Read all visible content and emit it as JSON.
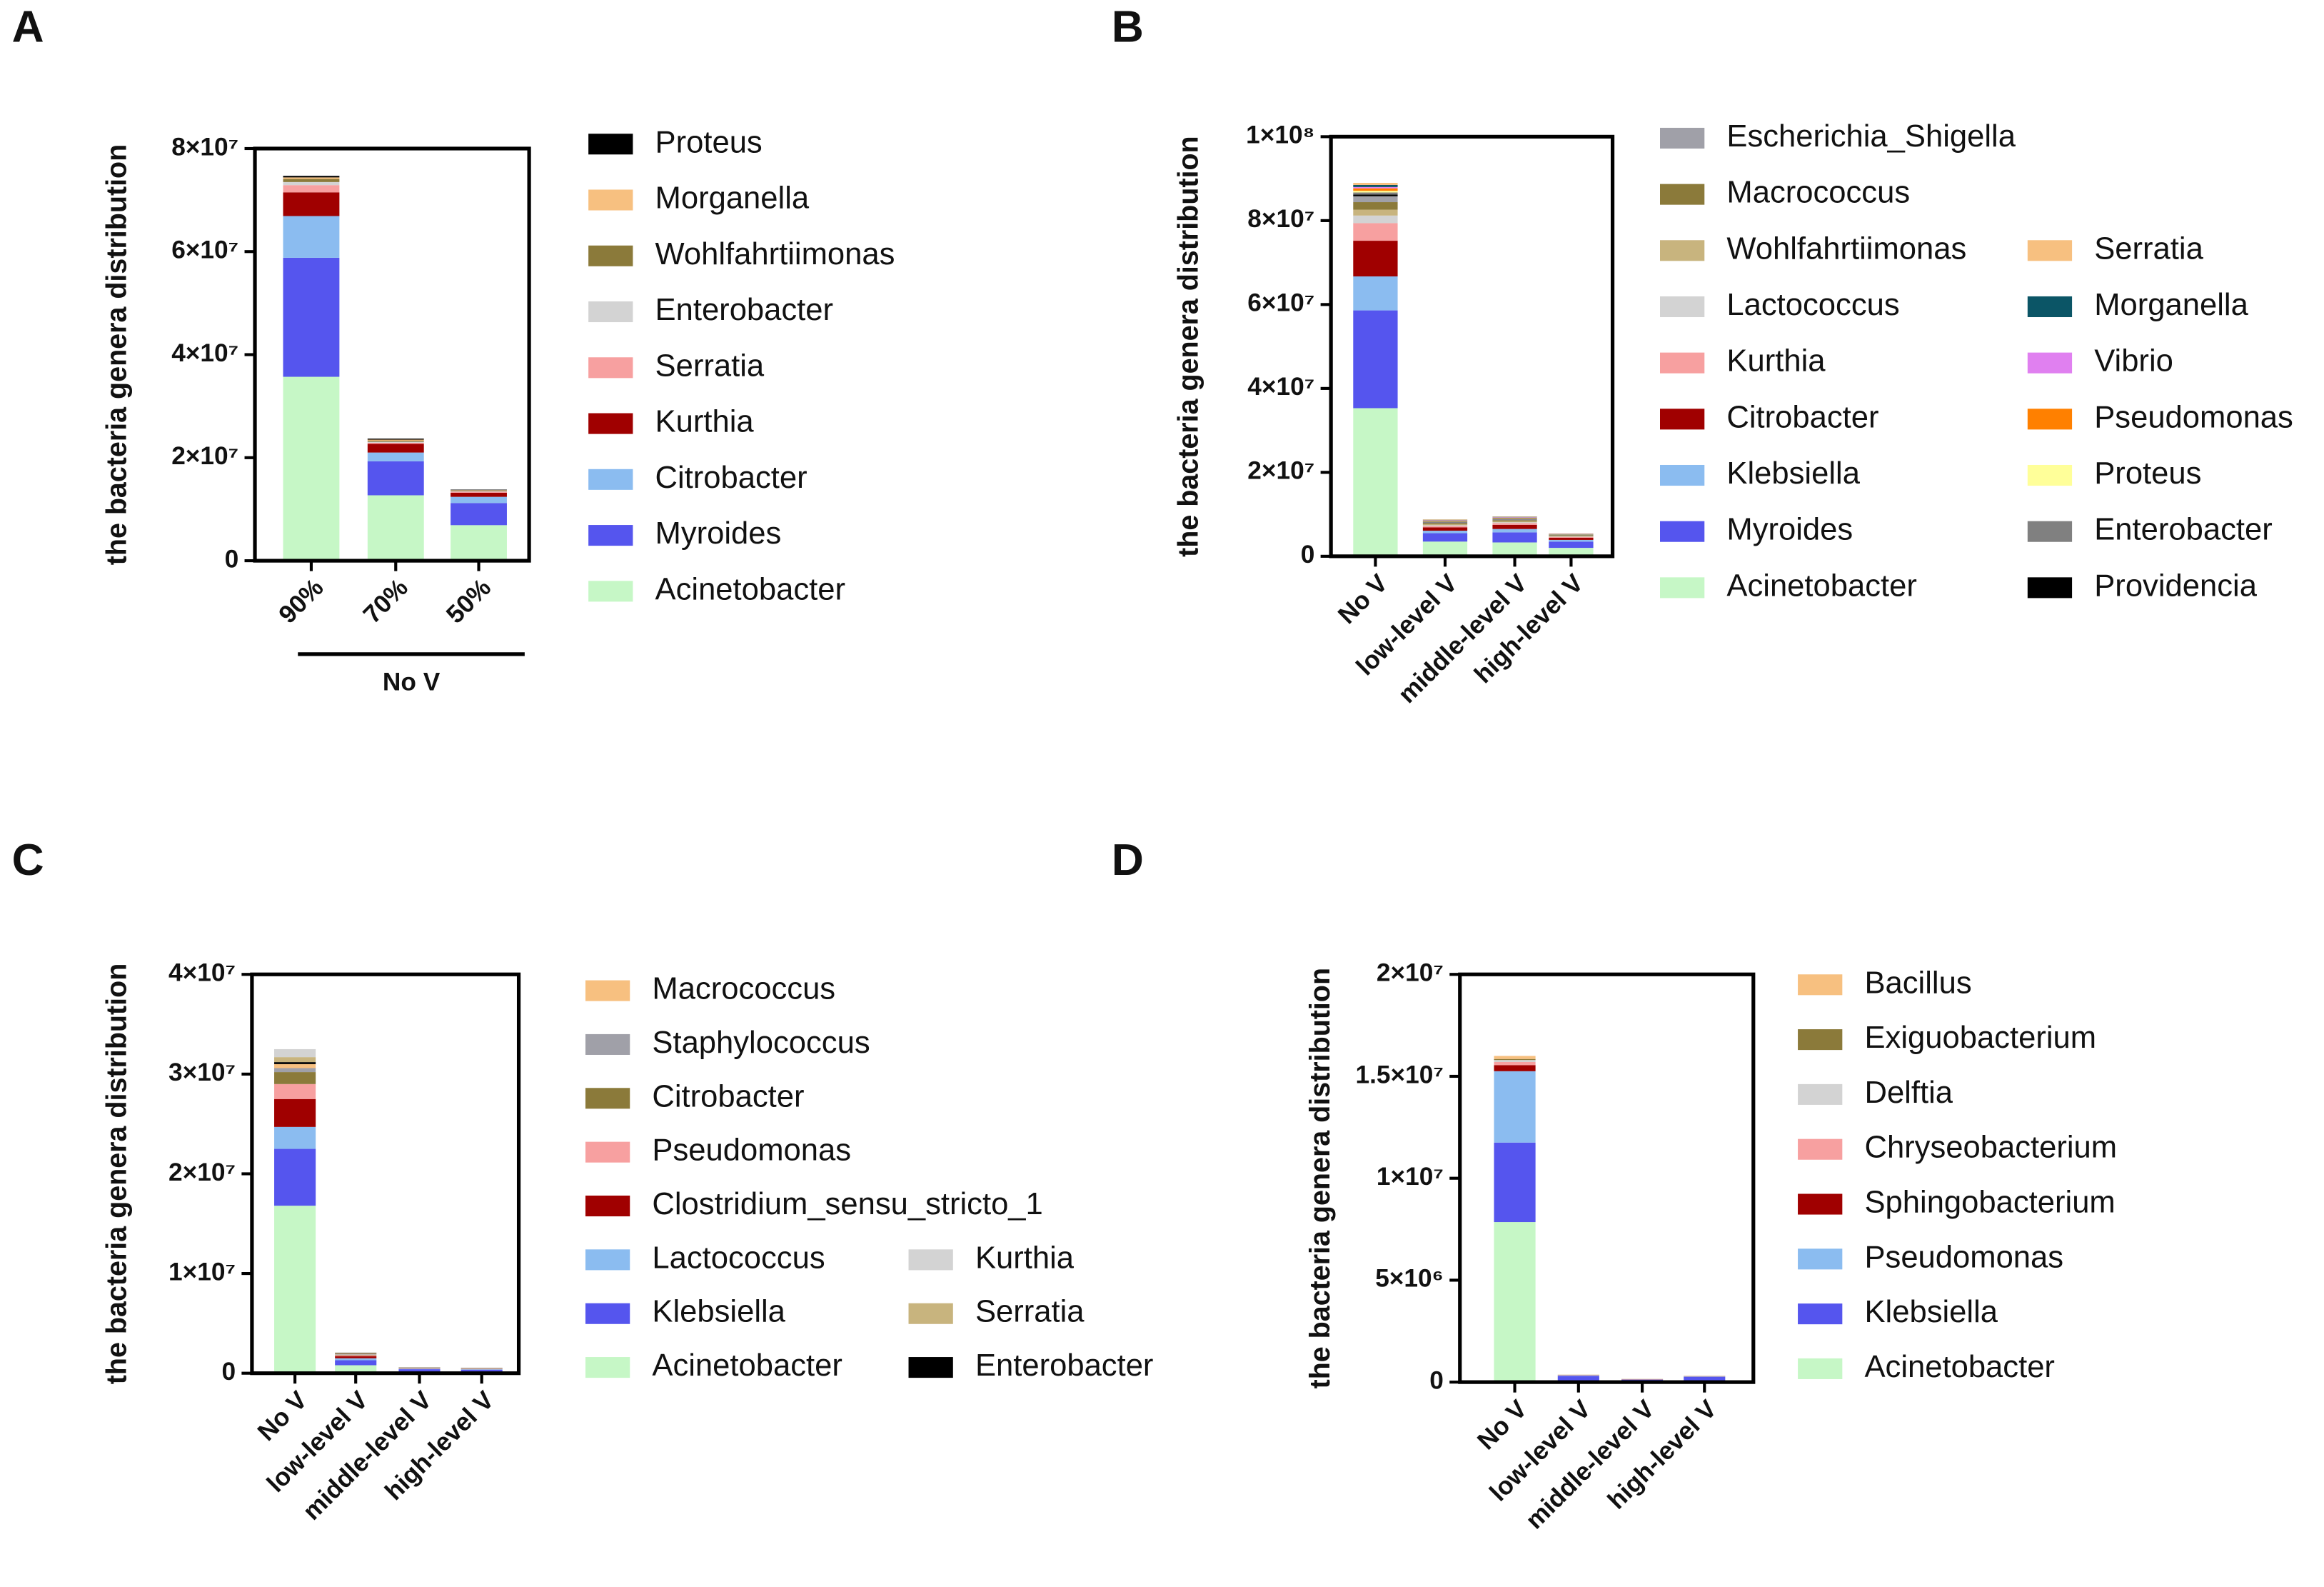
{
  "chart_data": [
    {
      "type": "bar",
      "stacked": true,
      "title": "A",
      "y_label": "the bacteria genera distribution",
      "categories": [
        "90%",
        "70%",
        "50%"
      ],
      "x_group_label": "No V",
      "ylim": [
        0,
        80000000
      ],
      "yticks": [
        0,
        {
          "value": 20000000,
          "label": "2×10⁷"
        },
        {
          "value": 40000000,
          "label": "4×10⁷"
        },
        {
          "value": 60000000,
          "label": "6×10⁷"
        },
        {
          "value": 80000000,
          "label": "8×10⁷"
        }
      ],
      "series": [
        {
          "name": "Acinetobacter",
          "color": "#c6f7c6",
          "values": [
            35700000,
            12700000,
            6900000
          ]
        },
        {
          "name": "Myroides",
          "color": "#5555ee",
          "values": [
            23100000,
            6600000,
            4300000
          ]
        },
        {
          "name": "Citrobacter",
          "color": "#8bbcf0",
          "values": [
            8100000,
            1700000,
            1200000
          ]
        },
        {
          "name": "Kurthia",
          "color": "#a00000",
          "values": [
            4600000,
            1700000,
            800000
          ]
        },
        {
          "name": "Serratia",
          "color": "#f7a0a0",
          "values": [
            1400000,
            200000,
            200000
          ]
        },
        {
          "name": "Enterobacter",
          "color": "#d3d3d3",
          "values": [
            600000,
            200000,
            100000
          ]
        },
        {
          "name": "Wohlfahrtiimonas",
          "color": "#8b7a3a",
          "values": [
            600000,
            200000,
            100000
          ]
        },
        {
          "name": "Morganella",
          "color": "#f7c080",
          "values": [
            300000,
            200000,
            100000
          ]
        },
        {
          "name": "Proteus",
          "color": "#000000",
          "values": [
            300000,
            200000,
            100000
          ]
        }
      ]
    },
    {
      "type": "bar",
      "stacked": true,
      "title": "B",
      "y_label": "the bacteria genera distribution",
      "categories": [
        "No V",
        "low-level  V",
        "middle-level  V",
        "high-level  V"
      ],
      "ylim": [
        0,
        100000000
      ],
      "yticks": [
        0,
        {
          "value": 20000000,
          "label": "2×10⁷"
        },
        {
          "value": 40000000,
          "label": "4×10⁷"
        },
        {
          "value": 60000000,
          "label": "6×10⁷"
        },
        {
          "value": 80000000,
          "label": "8×10⁷"
        },
        {
          "value": 100000000,
          "label": "1×10⁸"
        }
      ],
      "series": [
        {
          "name": "Acinetobacter",
          "color": "#c6f7c6",
          "values": [
            35300000,
            3500000,
            3300000,
            2000000
          ]
        },
        {
          "name": "Myroides",
          "color": "#5555ee",
          "values": [
            23300000,
            2000000,
            2400000,
            1500000
          ]
        },
        {
          "name": "Klebsiella",
          "color": "#8bbcf0",
          "values": [
            8100000,
            600000,
            800000,
            400000
          ]
        },
        {
          "name": "Citrobacter",
          "color": "#a00000",
          "values": [
            8500000,
            800000,
            1000000,
            500000
          ]
        },
        {
          "name": "Kurthia",
          "color": "#f7a0a0",
          "values": [
            4200000,
            300000,
            400000,
            200000
          ]
        },
        {
          "name": "Lactococcus",
          "color": "#d3d3d3",
          "values": [
            1800000,
            200000,
            200000,
            100000
          ]
        },
        {
          "name": "Wohlfahrtiimonas",
          "color": "#c8b47e",
          "values": [
            1400000,
            200000,
            200000,
            100000
          ]
        },
        {
          "name": "Macrococcus",
          "color": "#8b7a3a",
          "values": [
            1800000,
            300000,
            300000,
            200000
          ]
        },
        {
          "name": "Escherichia_Shigella",
          "color": "#a0a0a8",
          "values": [
            1400000,
            200000,
            200000,
            100000
          ]
        },
        {
          "name": "Providencia",
          "color": "#000000",
          "values": [
            400000,
            100000,
            100000,
            50000
          ]
        },
        {
          "name": "Enterobacter",
          "color": "#808080",
          "values": [
            500000,
            100000,
            100000,
            50000
          ]
        },
        {
          "name": "Proteus",
          "color": "#ffff99",
          "values": [
            400000,
            100000,
            100000,
            50000
          ]
        },
        {
          "name": "Pseudomonas",
          "color": "#ff8000",
          "values": [
            600000,
            100000,
            100000,
            50000
          ]
        },
        {
          "name": "Vibrio",
          "color": "#e080f0",
          "values": [
            300000,
            100000,
            100000,
            50000
          ]
        },
        {
          "name": "Morganella",
          "color": "#0b5566",
          "values": [
            500000,
            100000,
            100000,
            50000
          ]
        },
        {
          "name": "Serratia",
          "color": "#f7c080",
          "values": [
            500000,
            100000,
            100000,
            50000
          ]
        }
      ]
    },
    {
      "type": "bar",
      "stacked": true,
      "title": "C",
      "y_label": "the bacteria genera distribution",
      "categories": [
        "No V",
        "low-level V",
        "middle-level V",
        "high-level V"
      ],
      "ylim": [
        0,
        40000000
      ],
      "yticks": [
        0,
        {
          "value": 10000000,
          "label": "1×10⁷"
        },
        {
          "value": 20000000,
          "label": "2×10⁷"
        },
        {
          "value": 30000000,
          "label": "3×10⁷"
        },
        {
          "value": 40000000,
          "label": "4×10⁷"
        }
      ],
      "series": [
        {
          "name": "Acinetobacter",
          "color": "#c6f7c6",
          "values": [
            16800000,
            800000,
            100000,
            100000
          ]
        },
        {
          "name": "Klebsiella",
          "color": "#5555ee",
          "values": [
            5700000,
            500000,
            300000,
            250000
          ]
        },
        {
          "name": "Lactococcus",
          "color": "#8bbcf0",
          "values": [
            2200000,
            200000,
            50000,
            50000
          ]
        },
        {
          "name": "Clostridium_sensu_stricto_1",
          "color": "#a00000",
          "values": [
            2800000,
            200000,
            20000,
            20000
          ]
        },
        {
          "name": "Pseudomonas",
          "color": "#f7a0a0",
          "values": [
            1500000,
            100000,
            20000,
            20000
          ]
        },
        {
          "name": "Citrobacter",
          "color": "#8b7a3a",
          "values": [
            1200000,
            50000,
            20000,
            20000
          ]
        },
        {
          "name": "Staphylococcus",
          "color": "#a0a0a8",
          "values": [
            400000,
            50000,
            20000,
            20000
          ]
        },
        {
          "name": "Macrococcus",
          "color": "#f7c080",
          "values": [
            400000,
            50000,
            20000,
            20000
          ]
        },
        {
          "name": "Enterobacter",
          "color": "#000000",
          "values": [
            200000,
            50000,
            20000,
            20000
          ]
        },
        {
          "name": "Serratia",
          "color": "#c8b47e",
          "values": [
            500000,
            50000,
            20000,
            20000
          ]
        },
        {
          "name": "Kurthia",
          "color": "#d3d3d3",
          "values": [
            800000,
            50000,
            20000,
            20000
          ]
        }
      ]
    },
    {
      "type": "bar",
      "stacked": true,
      "title": "D",
      "y_label": "the bacteria genera distribution",
      "categories": [
        "No V",
        "low-level V",
        "middle-level V",
        "high-level V"
      ],
      "ylim": [
        0,
        20000000
      ],
      "yticks": [
        0,
        {
          "value": 5000000,
          "label": "5×10⁶"
        },
        {
          "value": 10000000,
          "label": "1×10⁷"
        },
        {
          "value": 15000000,
          "label": "1.5×10⁷"
        },
        {
          "value": 20000000,
          "label": "2×10⁷"
        }
      ],
      "series": [
        {
          "name": "Acinetobacter",
          "color": "#c6f7c6",
          "values": [
            7850000,
            50000,
            20000,
            40000
          ]
        },
        {
          "name": "Klebsiella",
          "color": "#5555ee",
          "values": [
            3900000,
            250000,
            100000,
            220000
          ]
        },
        {
          "name": "Pseudomonas",
          "color": "#8bbcf0",
          "values": [
            3500000,
            30000,
            10000,
            20000
          ]
        },
        {
          "name": "Sphingobacterium",
          "color": "#a00000",
          "values": [
            300000,
            10000,
            10000,
            10000
          ]
        },
        {
          "name": "Chryseobacterium",
          "color": "#f7a0a0",
          "values": [
            150000,
            10000,
            5000,
            5000
          ]
        },
        {
          "name": "Delftia",
          "color": "#d3d3d3",
          "values": [
            100000,
            5000,
            5000,
            5000
          ]
        },
        {
          "name": "Exiguobacterium",
          "color": "#8b7a3a",
          "values": [
            50000,
            5000,
            5000,
            5000
          ]
        },
        {
          "name": "Bacillus",
          "color": "#f7c080",
          "values": [
            150000,
            5000,
            5000,
            5000
          ]
        }
      ]
    }
  ]
}
